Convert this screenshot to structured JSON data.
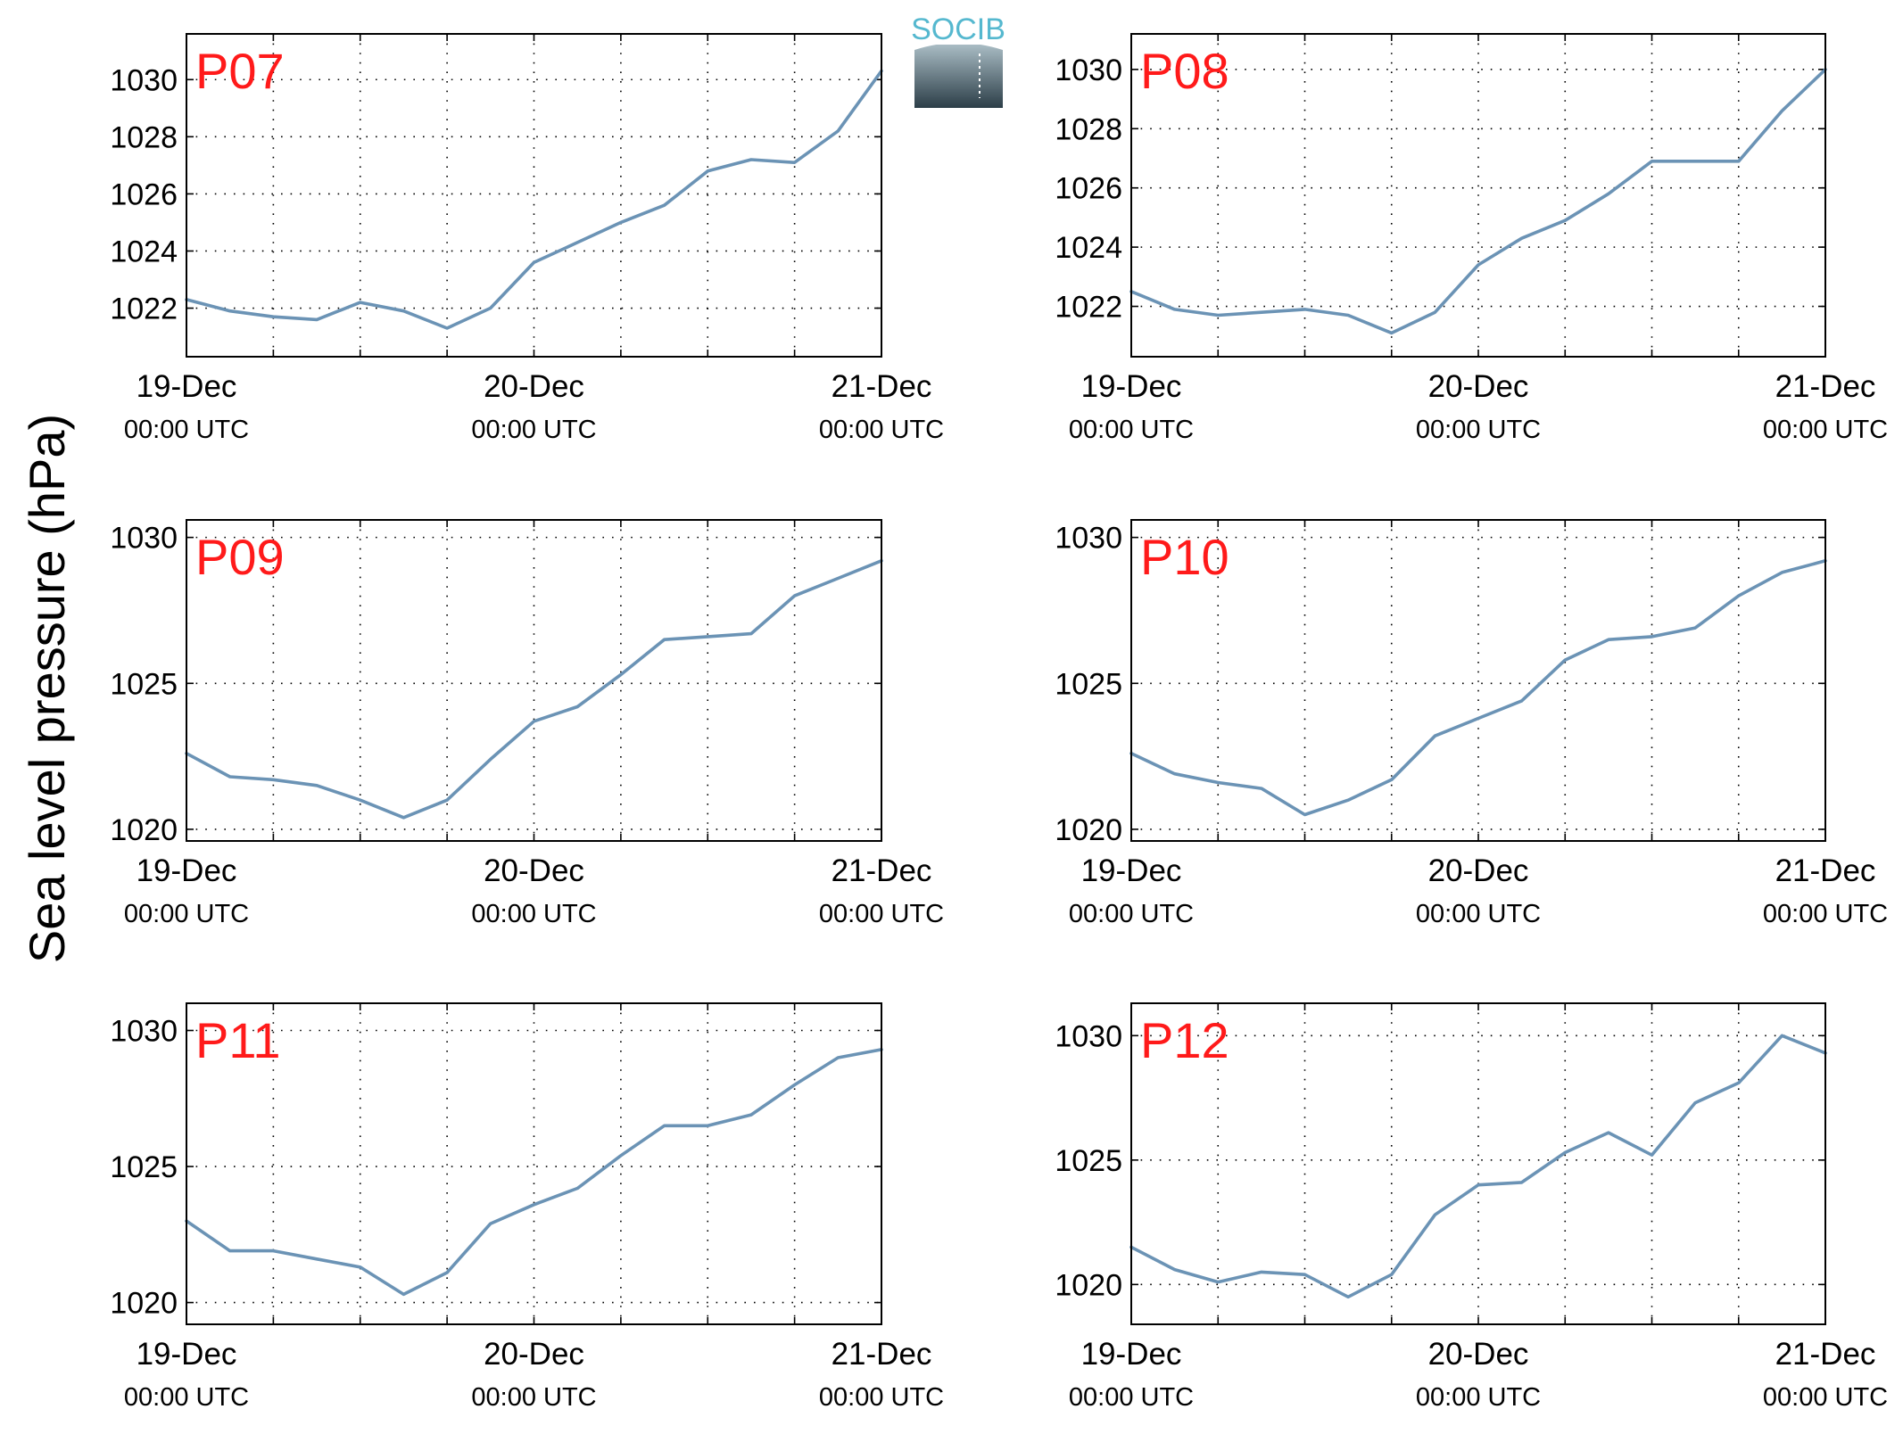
{
  "figure": {
    "ylabel": "Sea level pressure (hPa)",
    "logo_text": "SOCIB",
    "colors": {
      "line": "#6b93b5",
      "panel_label": "#ff1a1a",
      "axis": "#000000",
      "grid": "#000000",
      "logo_text": "#55b8cf",
      "logo_top": "#a9bcc4",
      "logo_bottom": "#2c3e48"
    }
  },
  "chart_data": [
    {
      "type": "line",
      "title": "P07",
      "x": [
        "19-Dec 00:00",
        "19-Dec 03:00",
        "19-Dec 06:00",
        "19-Dec 09:00",
        "19-Dec 12:00",
        "19-Dec 15:00",
        "19-Dec 18:00",
        "19-Dec 21:00",
        "20-Dec 00:00",
        "20-Dec 03:00",
        "20-Dec 06:00",
        "20-Dec 09:00",
        "20-Dec 12:00",
        "20-Dec 15:00",
        "20-Dec 18:00",
        "20-Dec 21:00",
        "21-Dec 00:00"
      ],
      "y": [
        1022.3,
        1021.9,
        1021.7,
        1021.6,
        1022.2,
        1021.9,
        1021.3,
        1022.0,
        1023.6,
        1024.3,
        1025.0,
        1025.6,
        1026.8,
        1027.2,
        1027.1,
        1028.2,
        1030.3
      ],
      "ylim": [
        1020.3,
        1031.6
      ],
      "yticks": [
        1022,
        1024,
        1026,
        1028,
        1030
      ],
      "xticks": [
        {
          "label": "19-Dec",
          "sublabel": "00:00 UTC"
        },
        {
          "label": "20-Dec",
          "sublabel": "00:00 UTC"
        },
        {
          "label": "21-Dec",
          "sublabel": "00:00 UTC"
        }
      ],
      "grid": true
    },
    {
      "type": "line",
      "title": "P08",
      "x": [
        "19-Dec 00:00",
        "19-Dec 03:00",
        "19-Dec 06:00",
        "19-Dec 09:00",
        "19-Dec 12:00",
        "19-Dec 15:00",
        "19-Dec 18:00",
        "19-Dec 21:00",
        "20-Dec 00:00",
        "20-Dec 03:00",
        "20-Dec 06:00",
        "20-Dec 09:00",
        "20-Dec 12:00",
        "20-Dec 15:00",
        "20-Dec 18:00",
        "20-Dec 21:00",
        "21-Dec 00:00"
      ],
      "y": [
        1022.5,
        1021.9,
        1021.7,
        1021.8,
        1021.9,
        1021.7,
        1021.1,
        1021.8,
        1023.4,
        1024.3,
        1024.9,
        1025.8,
        1026.9,
        1026.9,
        1026.9,
        1028.6,
        1030.0
      ],
      "ylim": [
        1020.3,
        1031.2
      ],
      "yticks": [
        1022,
        1024,
        1026,
        1028,
        1030
      ],
      "xticks": [
        {
          "label": "19-Dec",
          "sublabel": "00:00 UTC"
        },
        {
          "label": "20-Dec",
          "sublabel": "00:00 UTC"
        },
        {
          "label": "21-Dec",
          "sublabel": "00:00 UTC"
        }
      ],
      "grid": true
    },
    {
      "type": "line",
      "title": "P09",
      "x": [
        "19-Dec 00:00",
        "19-Dec 03:00",
        "19-Dec 06:00",
        "19-Dec 09:00",
        "19-Dec 12:00",
        "19-Dec 15:00",
        "19-Dec 18:00",
        "19-Dec 21:00",
        "20-Dec 00:00",
        "20-Dec 03:00",
        "20-Dec 06:00",
        "20-Dec 09:00",
        "20-Dec 12:00",
        "20-Dec 15:00",
        "20-Dec 18:00",
        "20-Dec 21:00",
        "21-Dec 00:00"
      ],
      "y": [
        1022.6,
        1021.8,
        1021.7,
        1021.5,
        1021.0,
        1020.4,
        1021.0,
        1022.4,
        1023.7,
        1024.2,
        1025.3,
        1026.5,
        1026.6,
        1026.7,
        1028.0,
        1028.6,
        1029.2
      ],
      "ylim": [
        1019.6,
        1030.6
      ],
      "yticks": [
        1020,
        1025,
        1030
      ],
      "xticks": [
        {
          "label": "19-Dec",
          "sublabel": "00:00 UTC"
        },
        {
          "label": "20-Dec",
          "sublabel": "00:00 UTC"
        },
        {
          "label": "21-Dec",
          "sublabel": "00:00 UTC"
        }
      ],
      "grid": true
    },
    {
      "type": "line",
      "title": "P10",
      "x": [
        "19-Dec 00:00",
        "19-Dec 03:00",
        "19-Dec 06:00",
        "19-Dec 09:00",
        "19-Dec 12:00",
        "19-Dec 15:00",
        "19-Dec 18:00",
        "19-Dec 21:00",
        "20-Dec 00:00",
        "20-Dec 03:00",
        "20-Dec 06:00",
        "20-Dec 09:00",
        "20-Dec 12:00",
        "20-Dec 15:00",
        "20-Dec 18:00",
        "20-Dec 21:00",
        "21-Dec 00:00"
      ],
      "y": [
        1022.6,
        1021.9,
        1021.6,
        1021.4,
        1020.5,
        1021.0,
        1021.7,
        1023.2,
        1023.8,
        1024.4,
        1025.8,
        1026.5,
        1026.6,
        1026.9,
        1028.0,
        1028.8,
        1029.2
      ],
      "ylim": [
        1019.6,
        1030.6
      ],
      "yticks": [
        1020,
        1025,
        1030
      ],
      "xticks": [
        {
          "label": "19-Dec",
          "sublabel": "00:00 UTC"
        },
        {
          "label": "20-Dec",
          "sublabel": "00:00 UTC"
        },
        {
          "label": "21-Dec",
          "sublabel": "00:00 UTC"
        }
      ],
      "grid": true
    },
    {
      "type": "line",
      "title": "P11",
      "x": [
        "19-Dec 00:00",
        "19-Dec 03:00",
        "19-Dec 06:00",
        "19-Dec 09:00",
        "19-Dec 12:00",
        "19-Dec 15:00",
        "19-Dec 18:00",
        "19-Dec 21:00",
        "20-Dec 00:00",
        "20-Dec 03:00",
        "20-Dec 06:00",
        "20-Dec 09:00",
        "20-Dec 12:00",
        "20-Dec 15:00",
        "20-Dec 18:00",
        "20-Dec 21:00",
        "21-Dec 00:00"
      ],
      "y": [
        1023.0,
        1021.9,
        1021.9,
        1021.6,
        1021.3,
        1020.3,
        1021.1,
        1022.9,
        1023.6,
        1024.2,
        1025.4,
        1026.5,
        1026.5,
        1026.9,
        1028.0,
        1029.0,
        1029.3
      ],
      "ylim": [
        1019.2,
        1031.0
      ],
      "yticks": [
        1020,
        1025,
        1030
      ],
      "xticks": [
        {
          "label": "19-Dec",
          "sublabel": "00:00 UTC"
        },
        {
          "label": "20-Dec",
          "sublabel": "00:00 UTC"
        },
        {
          "label": "21-Dec",
          "sublabel": "00:00 UTC"
        }
      ],
      "grid": true
    },
    {
      "type": "line",
      "title": "P12",
      "x": [
        "19-Dec 00:00",
        "19-Dec 03:00",
        "19-Dec 06:00",
        "19-Dec 09:00",
        "19-Dec 12:00",
        "19-Dec 15:00",
        "19-Dec 18:00",
        "19-Dec 21:00",
        "20-Dec 00:00",
        "20-Dec 03:00",
        "20-Dec 06:00",
        "20-Dec 09:00",
        "20-Dec 12:00",
        "20-Dec 15:00",
        "20-Dec 18:00",
        "20-Dec 21:00",
        "21-Dec 00:00"
      ],
      "y": [
        1021.5,
        1020.6,
        1020.1,
        1020.5,
        1020.4,
        1019.5,
        1020.4,
        1022.8,
        1024.0,
        1024.1,
        1025.3,
        1026.1,
        1025.2,
        1027.3,
        1028.1,
        1030.0,
        1029.3
      ],
      "ylim": [
        1018.4,
        1031.3
      ],
      "yticks": [
        1020,
        1025,
        1030
      ],
      "xticks": [
        {
          "label": "19-Dec",
          "sublabel": "00:00 UTC"
        },
        {
          "label": "20-Dec",
          "sublabel": "00:00 UTC"
        },
        {
          "label": "21-Dec",
          "sublabel": "00:00 UTC"
        }
      ],
      "grid": true
    }
  ]
}
